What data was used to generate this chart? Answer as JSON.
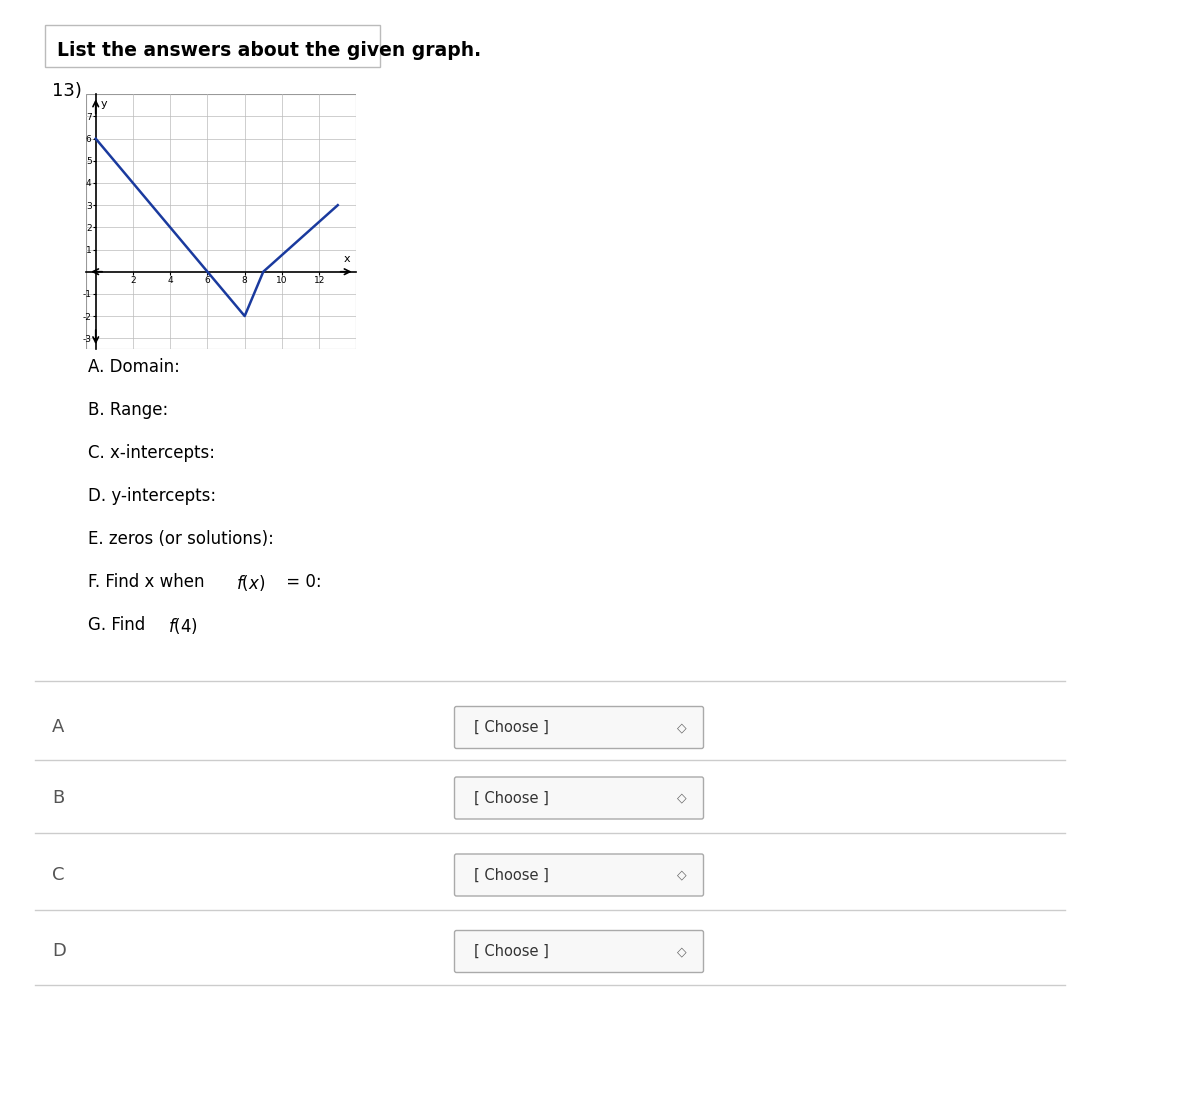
{
  "title": "List the answers about the given graph.",
  "question_number": "13)",
  "graph": {
    "x_data": [
      0,
      6,
      8,
      9,
      13
    ],
    "y_data": [
      6,
      0,
      -2,
      0,
      3
    ],
    "line_color": "#1a3a9e",
    "line_width": 1.8,
    "xlim": [
      -0.5,
      14
    ],
    "ylim": [
      -3.5,
      8
    ],
    "xticks": [
      2,
      4,
      6,
      8,
      10,
      12
    ],
    "yticks": [
      -3,
      -2,
      -1,
      1,
      2,
      3,
      4,
      5,
      6,
      7
    ],
    "xlabel": "x",
    "ylabel": "y"
  },
  "questions_plain": [
    "A. Domain:",
    "B. Range:",
    "C. x-intercepts:",
    "D. y-intercepts:",
    "E. zeros (or solutions):"
  ],
  "question_F_prefix": "F. Find x when ",
  "question_F_math": "f(x) = 0:",
  "question_G_prefix": "G. Find ",
  "question_G_math": "f(4)",
  "dropdown_labels": [
    "A",
    "B",
    "C",
    "D"
  ],
  "dropdown_text": "[ Choose ]",
  "bg_color": "#ffffff",
  "text_color": "#000000",
  "header_border_color": "#cccccc",
  "row_line_color": "#cccccc",
  "dropdown_border_color": "#aaaaaa",
  "dropdown_bg": "#f8f8f8",
  "label_color": "#555555"
}
